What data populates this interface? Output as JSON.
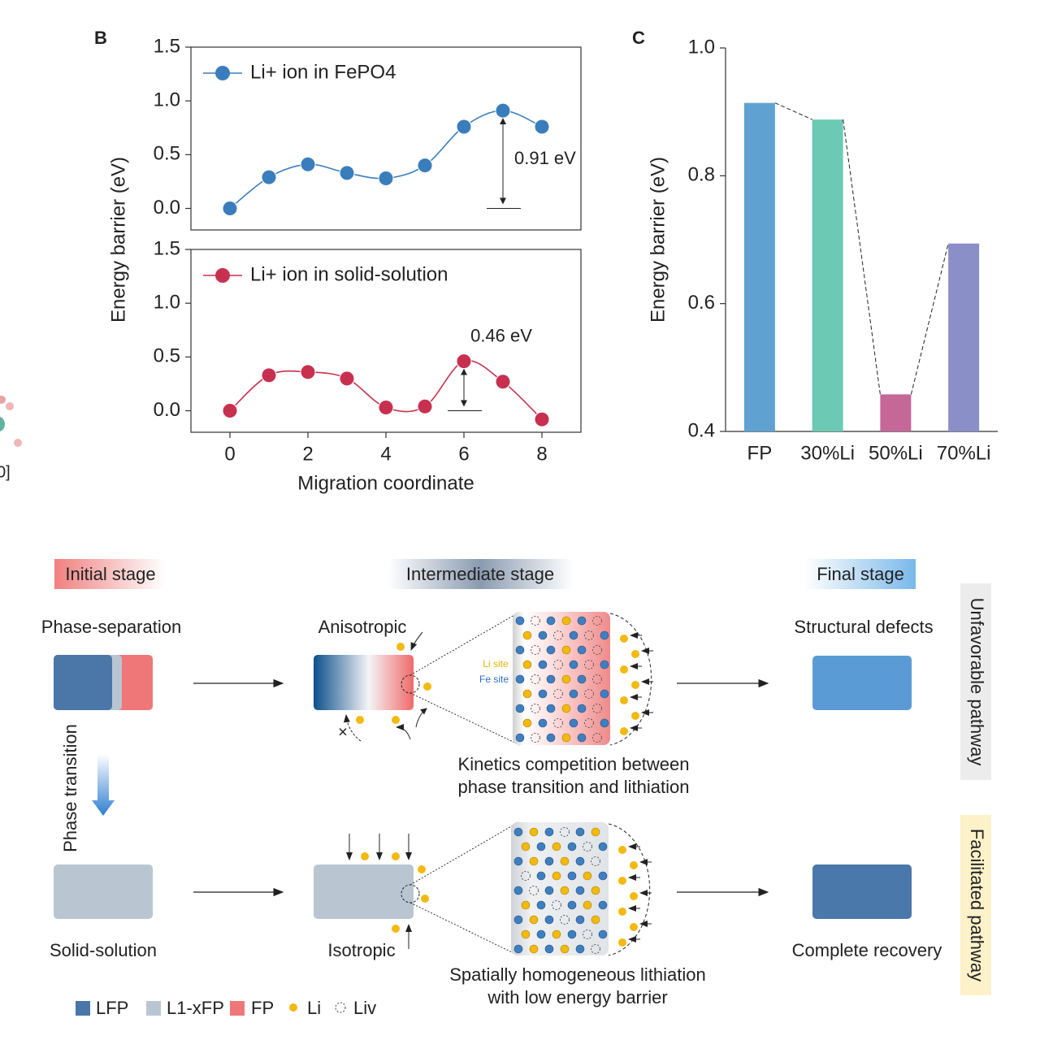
{
  "chart_data": [
    {
      "type": "line",
      "x": [
        0,
        1,
        2,
        3,
        4,
        5,
        6,
        7,
        8
      ],
      "series": [
        {
          "name": "Li+ ion in FePO4",
          "color": "#3a7dbd",
          "values": [
            0,
            0.29,
            0.41,
            0.33,
            0.28,
            0.4,
            0.76,
            0.91,
            0.76
          ]
        }
      ],
      "xlim": [
        -1,
        9
      ],
      "ylim": [
        -0.2,
        1.5
      ],
      "yticks": [
        {
          "value": 0,
          "label": "0.0"
        },
        0.5,
        {
          "value": 1,
          "label": "1.0"
        },
        1.5
      ],
      "annotation": "0.91 eV",
      "ylabel": "Energy barrier (eV)"
    },
    {
      "type": "line",
      "x": [
        0,
        1,
        2,
        3,
        4,
        5,
        6,
        7,
        8
      ],
      "series": [
        {
          "name": "Li+ ion in solid-solution",
          "color": "#c8304f",
          "values": [
            0,
            0.33,
            0.36,
            0.3,
            0.03,
            0.04,
            0.46,
            0.27,
            -0.08
          ]
        }
      ],
      "xlim": [
        -1,
        9
      ],
      "ylim": [
        -0.2,
        1.5
      ],
      "yticks": [
        {
          "value": 0,
          "label": "0.0"
        },
        0.5,
        {
          "value": 1,
          "label": "1.0"
        },
        1.5
      ],
      "xticks": [
        0,
        2,
        4,
        6,
        8
      ],
      "annotation": "0.46 eV",
      "xlabel": "Migration coordinate"
    },
    {
      "type": "bar",
      "categories": [
        "FP",
        "30%Li",
        "50%Li",
        "70%Li"
      ],
      "values": [
        0.914,
        0.888,
        0.458,
        0.694
      ],
      "colors": [
        "#5fa2d1",
        "#6ccab4",
        "#c56897",
        "#8a8fc7"
      ],
      "ylim": [
        0.4,
        1.0
      ],
      "yticks": [
        0.4,
        0.6,
        0.8,
        {
          "value": 1,
          "label": "1.0"
        }
      ],
      "ylabel": "Energy barrier (eV)"
    }
  ],
  "diagram": {
    "panel_labels": [
      "B",
      "C"
    ],
    "fragment": "0]",
    "stages": [
      "Initial stage",
      "Intermediate stage",
      "Final stage"
    ],
    "top_row": [
      "Phase-separation",
      "Anisotropic",
      "Structural defects"
    ],
    "bottom_row": [
      "Solid-solution",
      "Isotropic",
      "Complete recovery"
    ],
    "transition": "Phase transition",
    "pathways": [
      "Unfavorable pathway",
      "Facilitated pathway"
    ],
    "sites": [
      "Li site",
      "Fe site"
    ],
    "blocked": "×",
    "caption_top": [
      "Kinetics competition between",
      "phase transition and lithiation"
    ],
    "caption_bottom": [
      "Spatially homogeneous lithiation",
      "with low energy barrier"
    ],
    "legend": [
      "LFP",
      "L1-xFP",
      "FP",
      "Li",
      "Liv"
    ]
  }
}
